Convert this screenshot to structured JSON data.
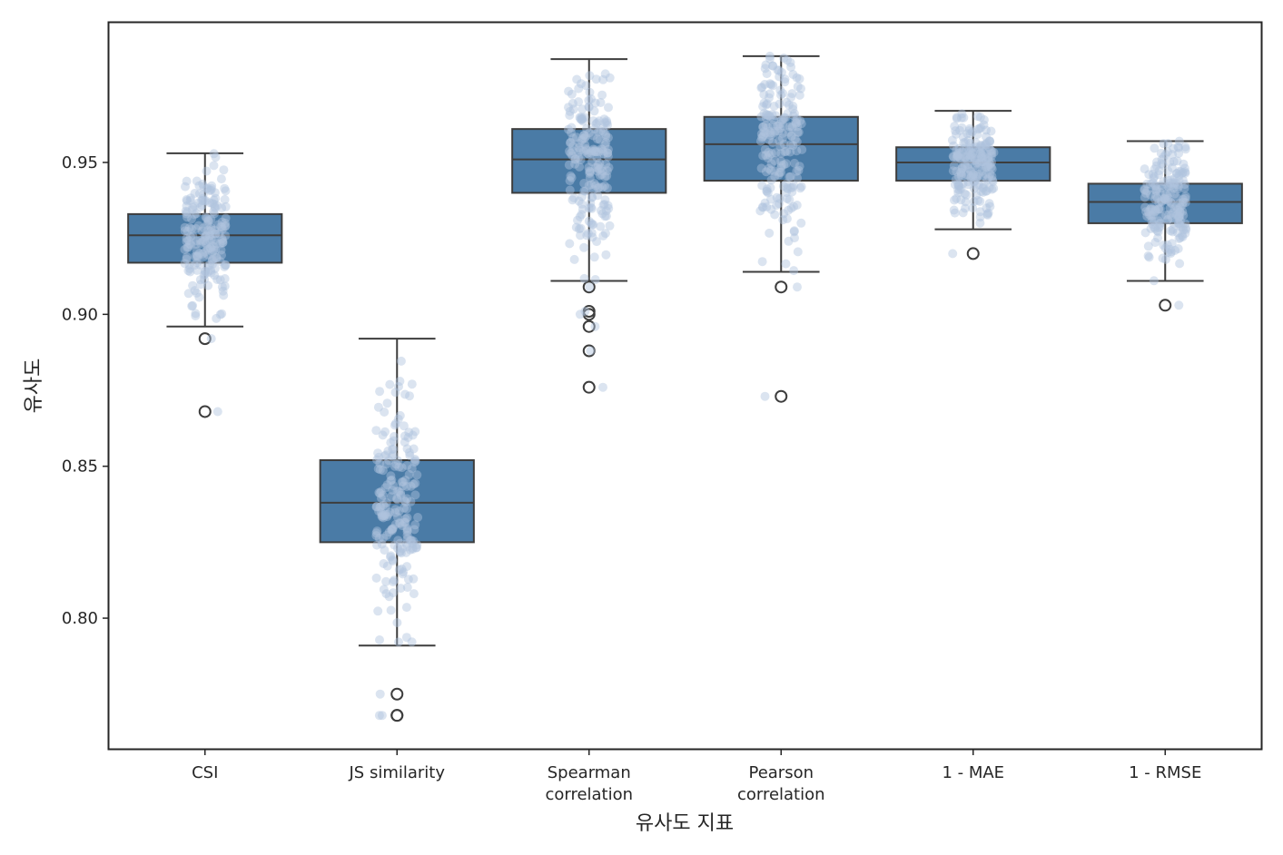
{
  "chart_data": {
    "type": "box",
    "title": "",
    "xlabel": "유사도 지표",
    "ylabel": "유사도",
    "ylim": [
      0.757,
      0.996
    ],
    "yticks": [
      0.8,
      0.85,
      0.9,
      0.95
    ],
    "ytick_labels": [
      "0.80",
      "0.85",
      "0.90",
      "0.95"
    ],
    "grid": false,
    "legend": "none",
    "colors": {
      "box_fill": "#4a7ba6",
      "box_edge": "#3d3d3d",
      "points": "#b0c4de",
      "outlier_edge": "#3d3d3d",
      "frame": "#262626"
    },
    "categories": [
      {
        "label": [
          "CSI"
        ],
        "whisker_high": 0.953,
        "q3": 0.933,
        "median": 0.926,
        "q1": 0.917,
        "whisker_low": 0.896,
        "outliers": [
          0.892,
          0.868
        ]
      },
      {
        "label": [
          "JS similarity"
        ],
        "whisker_high": 0.892,
        "q3": 0.852,
        "median": 0.838,
        "q1": 0.825,
        "whisker_low": 0.791,
        "outliers": [
          0.775,
          0.768,
          0.768
        ]
      },
      {
        "label": [
          "Spearman",
          "correlation"
        ],
        "whisker_high": 0.984,
        "q3": 0.961,
        "median": 0.951,
        "q1": 0.94,
        "whisker_low": 0.911,
        "outliers": [
          0.909,
          0.901,
          0.9,
          0.896,
          0.888,
          0.876
        ]
      },
      {
        "label": [
          "Pearson",
          "correlation"
        ],
        "whisker_high": 0.985,
        "q3": 0.965,
        "median": 0.956,
        "q1": 0.944,
        "whisker_low": 0.914,
        "outliers": [
          0.909,
          0.873
        ]
      },
      {
        "label": [
          "1 - MAE"
        ],
        "whisker_high": 0.967,
        "q3": 0.955,
        "median": 0.95,
        "q1": 0.944,
        "whisker_low": 0.928,
        "outliers": [
          0.92
        ]
      },
      {
        "label": [
          "1 - RMSE"
        ],
        "whisker_high": 0.957,
        "q3": 0.943,
        "median": 0.937,
        "q1": 0.93,
        "whisker_low": 0.911,
        "outliers": [
          0.903
        ]
      }
    ],
    "strip_points_per_category": 200
  }
}
